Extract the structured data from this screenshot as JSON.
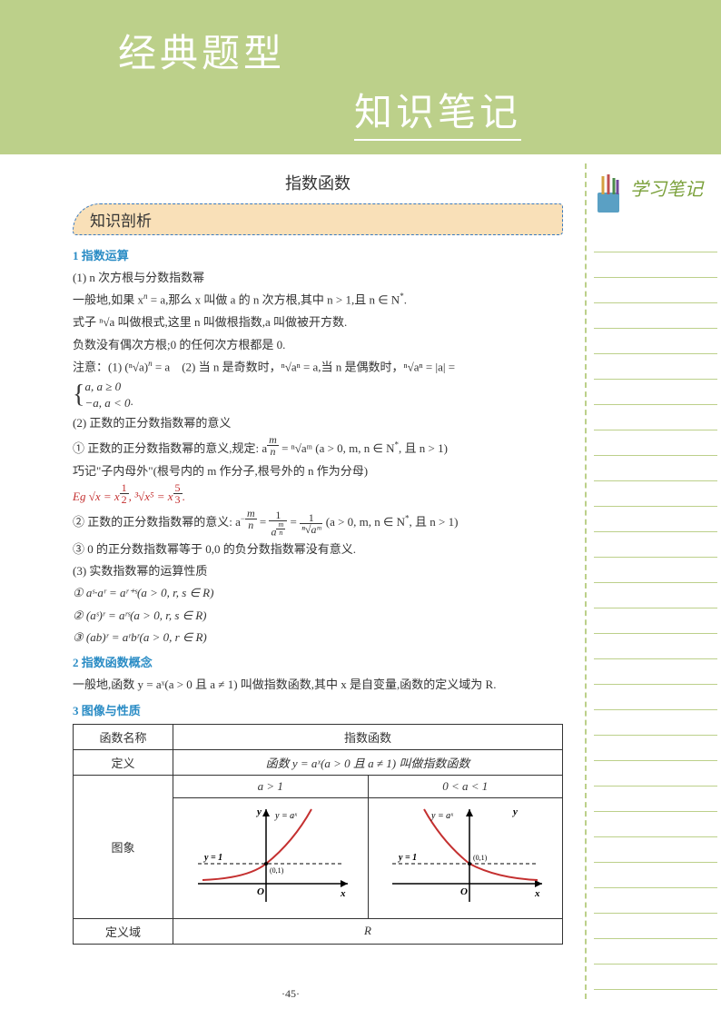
{
  "banner": {
    "title1": "经典题型",
    "title2": "知识笔记"
  },
  "pageTitle": "指数函数",
  "sectionHeader": "知识剖析",
  "sidebar": {
    "title": "学习笔记",
    "line_count": 30,
    "line_color": "#bcd08a"
  },
  "headings": {
    "h1": "1 指数运算",
    "h2": "2 指数函数概念",
    "h3": "3 图像与性质"
  },
  "content": {
    "p1": "(1) n 次方根与分数指数幂",
    "p2_pre": "一般地,如果 x",
    "p2_mid": " = a,那么 x 叫做 a 的 n 次方根,其中 n > 1,且 n ∈ N",
    "p2_sup": "n",
    "p2_star": "*",
    "p2_end": ".",
    "p3": "式子 ⁿ√a 叫做根式,这里 n 叫做根指数,a 叫做被开方数.",
    "p4": "负数没有偶次方根;0 的任何次方根都是 0.",
    "p5a": "注意：(1) (ⁿ√a)",
    "p5b": " = a",
    "p5c": "(2) 当 n 是奇数时，ⁿ√aⁿ = a,当 n 是偶数时，ⁿ√aⁿ = |a| =",
    "p5sup": "n",
    "brace1": "a,   a ≥ 0",
    "brace2": "−a,  a < 0",
    "p6": "(2) 正数的正分数指数幂的意义",
    "p7a": "① 正数的正分数指数幂的意义,规定: a",
    "p7b": " = ⁿ√aᵐ (a > 0, m, n ∈ N",
    "p7c": ", 且 n > 1)",
    "p7frac_m": "m",
    "p7frac_n": "n",
    "p8": "巧记\"子内母外\"(根号内的 m 作分子,根号外的 n 作为分母)",
    "eg_label": "Eg",
    "eg_text": " √x = x",
    "eg_frac1n": "1",
    "eg_frac1d": "2",
    "eg_text2": ", ³√x⁵ = x",
    "eg_frac2n": "5",
    "eg_frac2d": "3",
    "eg_end": ".",
    "p9a": "② 正数的正分数指数幂的意义: a",
    "p9neg_m": "m",
    "p9neg_n": "n",
    "p9b": " = ",
    "p9frac1n": "1",
    "p9c": " = ",
    "p9frac2n": "1",
    "p9d": " (a > 0, m, n ∈ N",
    "p9e": ", 且 n > 1)",
    "p10": "③ 0 的正分数指数幂等于 0,0 的负分数指数幂没有意义.",
    "p11": "(3) 实数指数幂的运算性质",
    "p12": "① aˢ·aʳ = aʳ⁺ˢ(a > 0, r, s ∈ R)",
    "p13": "② (aˢ)ʳ = aʳˢ(a > 0, r, s ∈ R)",
    "p14": "③ (ab)ʳ = aʳbʳ(a > 0, r ∈ R)",
    "p_concept": "一般地,函数 y = aˣ(a > 0 且 a ≠ 1) 叫做指数函数,其中 x 是自变量,函数的定义域为 R."
  },
  "table": {
    "r1c1": "函数名称",
    "r1c2": "指数函数",
    "r2c1": "定义",
    "r2c2": "函数 y = aˣ(a > 0 且 a ≠ 1) 叫做指数函数",
    "r3c2a": "a > 1",
    "r3c2b": "0 < a < 1",
    "r4c1": "图象",
    "r5c1": "定义域",
    "r5c2": "R"
  },
  "graph": {
    "curve_color": "#c43030",
    "axis_color": "#000000",
    "dash_color": "#000000",
    "label_y": "y",
    "label_x": "x",
    "label_O": "O",
    "label_fn": "y = aˣ",
    "label_y1": "y = 1",
    "label_pt": "(0,1)"
  },
  "colors": {
    "banner_bg": "#bcd08a",
    "section_bg": "#f9e0b8",
    "section_border": "#3a7ac0",
    "heading_blue": "#2a8cc5",
    "red": "#c43030",
    "sidebar_green": "#7aa03a"
  },
  "pageNumber": "·45·"
}
